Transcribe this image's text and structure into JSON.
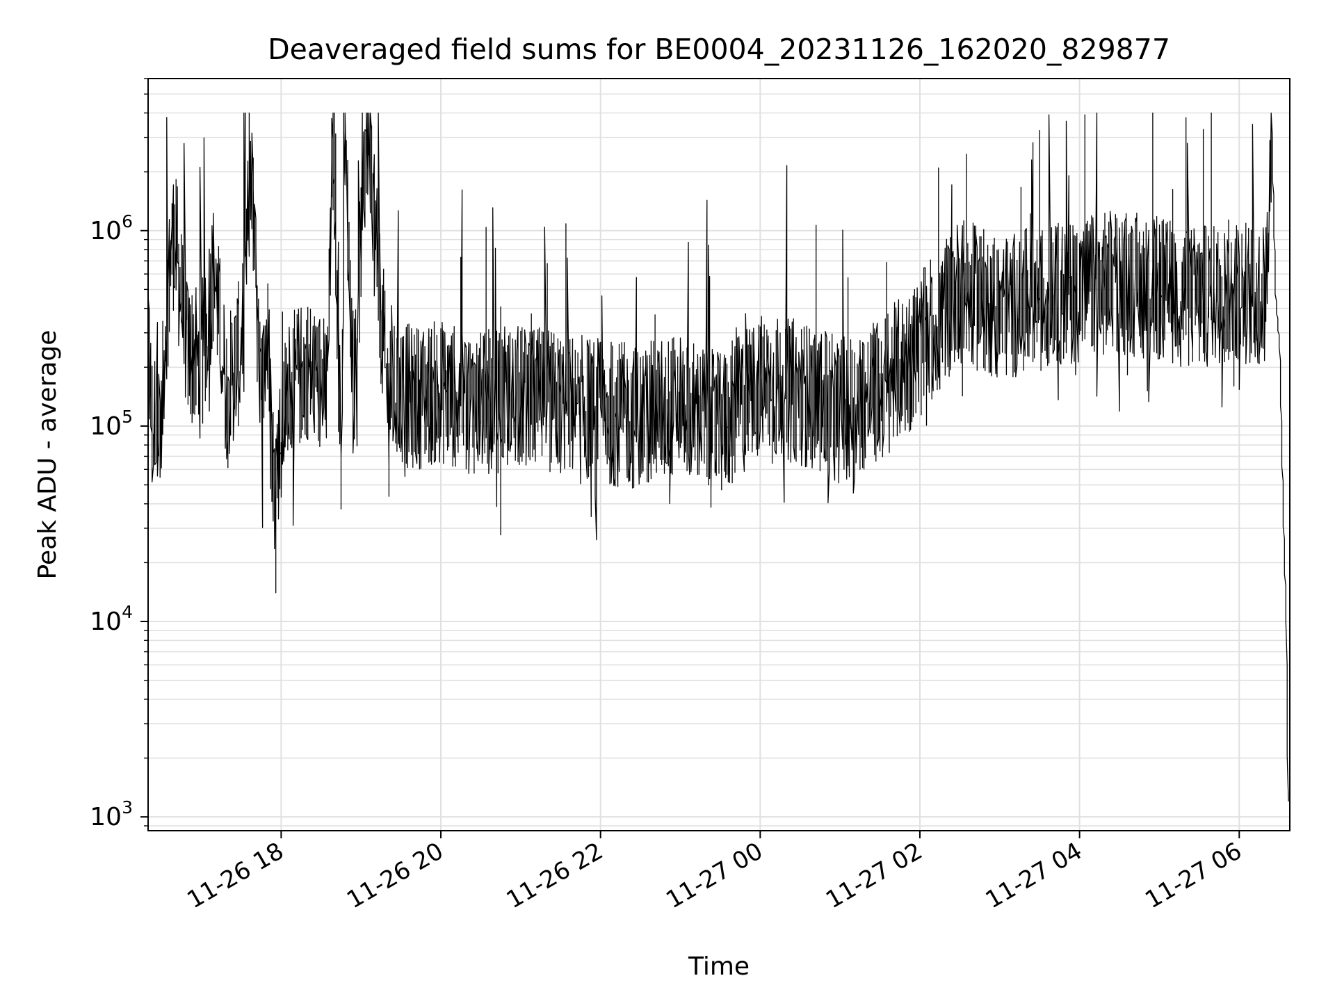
{
  "chart_data": {
    "type": "line",
    "title": "Deaveraged field sums for BE0004_20231126_162020_829877",
    "xlabel": "Time",
    "ylabel": "Peak ADU - average",
    "yscale": "log",
    "xlim": [
      "2023-11-26 16:20",
      "2023-11-27 06:38"
    ],
    "ylim": [
      850,
      6000000
    ],
    "grid": true,
    "line_color": "#000000",
    "grid_color": "#e0e0e0",
    "x_ticks": [
      {
        "value": "2023-11-26 18:00",
        "label": "11-26 18"
      },
      {
        "value": "2023-11-26 20:00",
        "label": "11-26 20"
      },
      {
        "value": "2023-11-26 22:00",
        "label": "11-26 22"
      },
      {
        "value": "2023-11-27 00:00",
        "label": "11-27 00"
      },
      {
        "value": "2023-11-27 02:00",
        "label": "11-27 02"
      },
      {
        "value": "2023-11-27 04:00",
        "label": "11-27 04"
      },
      {
        "value": "2023-11-27 06:00",
        "label": "11-27 06"
      }
    ],
    "y_ticks": [
      {
        "value": 1000,
        "base": "10",
        "exp": "3"
      },
      {
        "value": 10000,
        "base": "10",
        "exp": "4"
      },
      {
        "value": 100000,
        "base": "10",
        "exp": "5"
      },
      {
        "value": 1000000,
        "base": "10",
        "exp": "6"
      }
    ],
    "series": [
      {
        "x": [
          "2023-11-26 16:20",
          "2023-11-26 16:24",
          "2023-11-26 16:27",
          "2023-11-26 16:30",
          "2023-11-26 16:34",
          "2023-11-26 16:40",
          "2023-11-26 16:50",
          "2023-11-26 17:00",
          "2023-11-26 17:10",
          "2023-11-26 17:20",
          "2023-11-26 17:30",
          "2023-11-26 17:38",
          "2023-11-26 17:45",
          "2023-11-26 17:50",
          "2023-11-26 17:55",
          "2023-11-26 18:05",
          "2023-11-26 18:20",
          "2023-11-26 18:35",
          "2023-11-26 18:40",
          "2023-11-26 18:46",
          "2023-11-26 18:48",
          "2023-11-26 18:55",
          "2023-11-26 19:05",
          "2023-11-26 19:20",
          "2023-11-26 19:40",
          "2023-11-26 20:00",
          "2023-11-26 20:30",
          "2023-11-26 21:00",
          "2023-11-26 21:30",
          "2023-11-26 22:00",
          "2023-11-26 22:30",
          "2023-11-26 23:00",
          "2023-11-26 23:30",
          "2023-11-27 00:00",
          "2023-11-27 00:30",
          "2023-11-27 01:00",
          "2023-11-27 01:30",
          "2023-11-27 02:00",
          "2023-11-27 02:30",
          "2023-11-27 03:00",
          "2023-11-27 03:30",
          "2023-11-27 04:00",
          "2023-11-27 04:30",
          "2023-11-27 05:00",
          "2023-11-27 05:30",
          "2023-11-27 06:00",
          "2023-11-27 06:20",
          "2023-11-27 06:25",
          "2023-11-27 06:28",
          "2023-11-27 06:31",
          "2023-11-27 06:34",
          "2023-11-27 06:36",
          "2023-11-27 06:37"
        ],
        "y": [
          300000,
          85000,
          160000,
          75000,
          400000,
          1000000,
          250000,
          200000,
          600000,
          150000,
          250000,
          2200000,
          120000,
          300000,
          50000,
          150000,
          200000,
          150000,
          3800000,
          60000,
          4000000,
          150000,
          3800000,
          150000,
          140000,
          150000,
          130000,
          140000,
          130000,
          120000,
          110000,
          130000,
          100000,
          160000,
          150000,
          120000,
          150000,
          250000,
          500000,
          400000,
          450000,
          500000,
          550000,
          500000,
          450000,
          500000,
          450000,
          3300000,
          450000,
          250000,
          30000,
          10000,
          1200
        ]
      }
    ]
  }
}
